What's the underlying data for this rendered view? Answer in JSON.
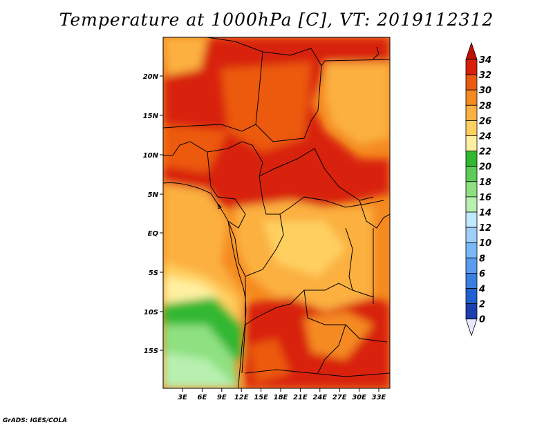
{
  "title": "Temperature at 1000hPa [C], VT: 2019112312",
  "credit": "GrADS: IGES/COLA",
  "map": {
    "lat_labels": [
      "20N",
      "15N",
      "10N",
      "5N",
      "EQ",
      "5S",
      "10S",
      "15S"
    ],
    "lon_labels": [
      "3E",
      "6E",
      "9E",
      "12E",
      "15E",
      "18E",
      "21E",
      "24E",
      "27E",
      "30E",
      "33E"
    ]
  },
  "colorbar": {
    "levels": [
      "0",
      "2",
      "4",
      "6",
      "8",
      "10",
      "12",
      "14",
      "16",
      "18",
      "20",
      "22",
      "24",
      "26",
      "28",
      "30",
      "32",
      "34"
    ],
    "colors": [
      "#1f1f8f",
      "#1c3fb0",
      "#2060d0",
      "#3a7fe0",
      "#5a9cf0",
      "#7ab8f8",
      "#9fd0fb",
      "#c0e8ff",
      "#b8f0b0",
      "#8ee080",
      "#5ccc58",
      "#30b830",
      "#fff0a0",
      "#ffd060",
      "#fbb040",
      "#f58a20",
      "#ec5a10",
      "#d82008",
      "#c01000"
    ]
  }
}
